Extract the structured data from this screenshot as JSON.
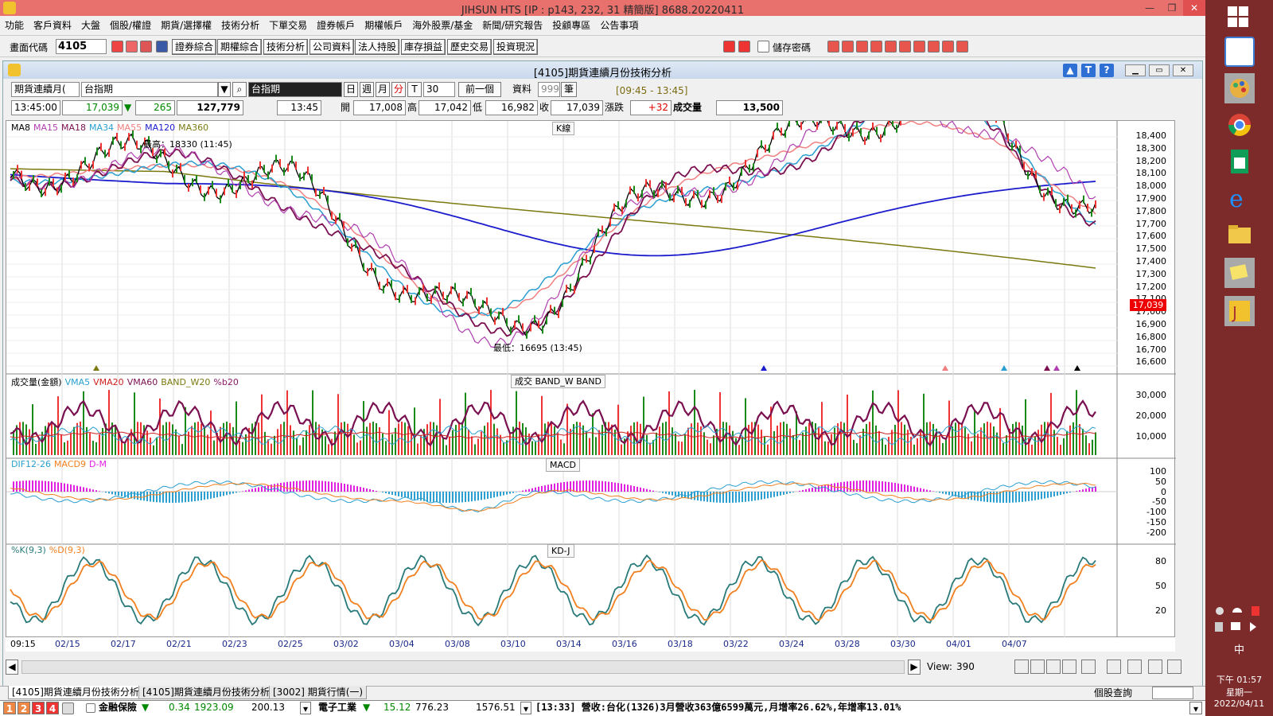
{
  "app": {
    "title": "JIHSUN HTS    [IP : p143, 232, 31 精簡版] 8688.20220411"
  },
  "menu": [
    "功能",
    "客戶資料",
    "大盤",
    "個股/權證",
    "期貨/選擇權",
    "技術分析",
    "下單交易",
    "證券帳戶",
    "期權帳戶",
    "海外股票/基金",
    "新聞/研究報告",
    "投顧專區",
    "公告事項"
  ],
  "toolbar": {
    "code_label": "畫面代碼",
    "code_value": "4105",
    "buttons": [
      "證券綜合",
      "期權綜合",
      "技術分析",
      "公司資料",
      "法人持股",
      "庫存損益",
      "歷史交易",
      "投資現況"
    ],
    "save_pwd": "儲存密碼"
  },
  "window": {
    "title": "[4105]期貨連續月份技術分析"
  },
  "controls": {
    "product_type": "期貨連續月(",
    "product": "台指期",
    "index_box": "台指期",
    "periods": [
      "日",
      "週",
      "月",
      "分",
      "T"
    ],
    "minutes": "30",
    "prev": "前一個",
    "data_label": "資料",
    "data_count": "999",
    "unit": "筆",
    "time_range": "[09:45 - 13:45]"
  },
  "quote": {
    "time": "13:45:00",
    "last": "17,039",
    "arrow": "▼",
    "change_abs": "265",
    "volume_total": "127,779",
    "bar_time": "13:45",
    "open_label": "開",
    "open": "17,008",
    "high_label": "高",
    "high": "17,042",
    "low_label": "低",
    "low": "16,982",
    "close_label": "收",
    "close": "17,039",
    "chg_label": "漲跌",
    "chg": "+32",
    "vol_label": "成交量",
    "vol": "13,500"
  },
  "kline": {
    "tag": "K線",
    "legend": [
      {
        "t": "MA8",
        "c": "#000000"
      },
      {
        "t": "MA15",
        "c": "#b040b0"
      },
      {
        "t": "MA18",
        "c": "#7a1050"
      },
      {
        "t": "MA34",
        "c": "#2a9fd0"
      },
      {
        "t": "MA55",
        "c": "#f08080"
      },
      {
        "t": "MA120",
        "c": "#1c1ccc"
      },
      {
        "t": "MA360",
        "c": "#7a7a10"
      }
    ],
    "axis": [
      "18,400",
      "18,300",
      "18,200",
      "18,100",
      "18,000",
      "17,900",
      "17,800",
      "17,700",
      "17,600",
      "17,500",
      "17,400",
      "17,300",
      "17,200",
      "17,100",
      "17,000",
      "16,900",
      "16,800",
      "16,700",
      "16,600"
    ],
    "max_note": "最高：18330 (11:45)",
    "min_note": "最低：16695 (13:45)",
    "price_flag": "17,039"
  },
  "volume": {
    "tag": "成交  BAND_W  BAND",
    "legend": [
      {
        "t": "成交量(金額)",
        "c": "#000000"
      },
      {
        "t": "VMA5",
        "c": "#2a9fd0"
      },
      {
        "t": "VMA20",
        "c": "#d02020"
      },
      {
        "t": "VMA60",
        "c": "#7a1050"
      },
      {
        "t": "BAND_W20",
        "c": "#7a7a10"
      },
      {
        "t": "%b20",
        "c": "#8a1a6a"
      }
    ],
    "axis": [
      "30,000",
      "20,000",
      "10,000"
    ]
  },
  "macd": {
    "tag": "MACD",
    "legend": [
      {
        "t": "DIF12-26",
        "c": "#2a9fd0"
      },
      {
        "t": "MACD9",
        "c": "#f08020"
      },
      {
        "t": "D-M",
        "c": "#e020e0"
      }
    ],
    "axis": [
      "100",
      "50",
      "0",
      "-50",
      "-100",
      "-150",
      "-200"
    ]
  },
  "kd": {
    "tag": "KD-J",
    "legend": [
      {
        "t": "%K(9,3)",
        "c": "#2a7a7a"
      },
      {
        "t": "%D(9,3)",
        "c": "#f08020"
      }
    ],
    "axis": [
      "80",
      "50",
      "20"
    ]
  },
  "dates": [
    "09:15",
    "02/15",
    "02/17",
    "02/21",
    "02/23",
    "02/25",
    "03/02",
    "03/04",
    "03/08",
    "03/10",
    "03/14",
    "03/16",
    "03/18",
    "03/22",
    "03/24",
    "03/28",
    "03/30",
    "04/01",
    "04/07"
  ],
  "view": {
    "label": "View:",
    "value": "390"
  },
  "tabs": [
    "[4105]期貨連續月份技術分析",
    "[4105]期貨連續月份技術分析",
    "[3002] 期貨行情(一)"
  ],
  "status_right": "個股查詢",
  "ticker": {
    "nums": [
      "1",
      "2",
      "3",
      "4"
    ],
    "sec1": "金融保險",
    "sec1_chg": "0.34",
    "sec1_idx": "1923.09",
    "sec1_vol": "200.13",
    "sec2": "電子工業",
    "sec2_chg": "15.12",
    "sec2_idx": "776.23",
    "sec2_vol": "1576.51",
    "news": "[13:33] 營收:台化(1326)3月營收363億6599萬元,月增率26.62%,年增率13.01%"
  },
  "taskbar": {
    "ime": "中",
    "time": "下午 01:57",
    "weekday": "星期一",
    "date": "2022/04/11"
  }
}
